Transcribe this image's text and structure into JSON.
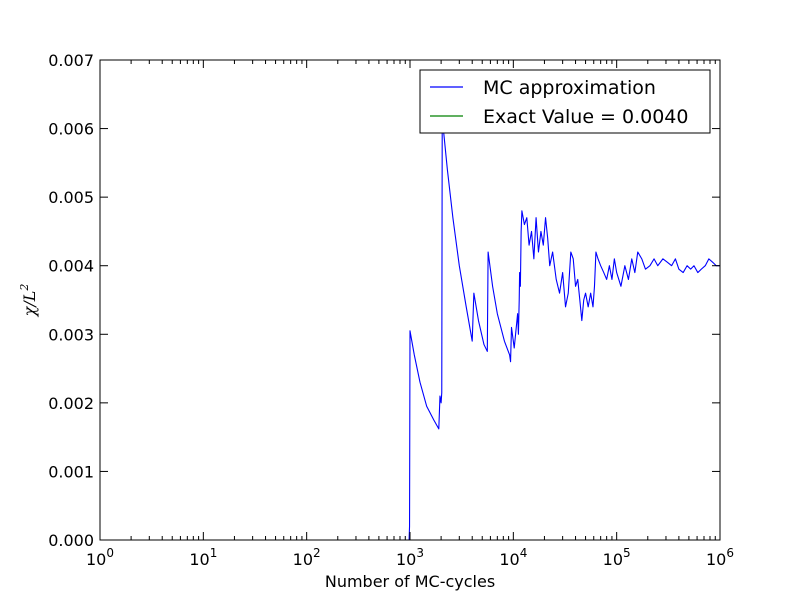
{
  "chart_data": {
    "type": "line",
    "xscale": "log",
    "xlim": [
      1,
      1000000
    ],
    "ylim": [
      0.0,
      0.007
    ],
    "xlabel": "Number of MC-cycles",
    "ylabel": "χ/L",
    "ylabel_sup": "2",
    "x_ticks": [
      {
        "value": 1,
        "base": "10",
        "exp": "0"
      },
      {
        "value": 10,
        "base": "10",
        "exp": "1"
      },
      {
        "value": 100,
        "base": "10",
        "exp": "2"
      },
      {
        "value": 1000,
        "base": "10",
        "exp": "3"
      },
      {
        "value": 10000,
        "base": "10",
        "exp": "4"
      },
      {
        "value": 100000,
        "base": "10",
        "exp": "5"
      },
      {
        "value": 1000000,
        "base": "10",
        "exp": "6"
      }
    ],
    "y_ticks": [
      {
        "value": 0.0,
        "label": "0.000"
      },
      {
        "value": 0.001,
        "label": "0.001"
      },
      {
        "value": 0.002,
        "label": "0.002"
      },
      {
        "value": 0.003,
        "label": "0.003"
      },
      {
        "value": 0.004,
        "label": "0.004"
      },
      {
        "value": 0.005,
        "label": "0.005"
      },
      {
        "value": 0.006,
        "label": "0.006"
      },
      {
        "value": 0.007,
        "label": "0.007"
      }
    ],
    "legend_position": "top-right",
    "series": [
      {
        "name": "MC approximation",
        "color": "#0000ff",
        "points": [
          [
            1,
            0.0
          ],
          [
            100,
            0.0
          ],
          [
            950,
            0.0
          ],
          [
            980,
            0.0
          ],
          [
            990,
            0.0002
          ],
          [
            1000,
            0.00305
          ],
          [
            1100,
            0.0027
          ],
          [
            1250,
            0.0023
          ],
          [
            1450,
            0.00195
          ],
          [
            1700,
            0.00175
          ],
          [
            1900,
            0.00162
          ],
          [
            1950,
            0.0021
          ],
          [
            2000,
            0.002
          ],
          [
            2030,
            0.00215
          ],
          [
            2050,
            0.00605
          ],
          [
            2100,
            0.006
          ],
          [
            2300,
            0.0054
          ],
          [
            2600,
            0.0047
          ],
          [
            3000,
            0.004
          ],
          [
            3500,
            0.0034
          ],
          [
            4000,
            0.0029
          ],
          [
            4150,
            0.0036
          ],
          [
            4600,
            0.0032
          ],
          [
            5200,
            0.00285
          ],
          [
            5600,
            0.00275
          ],
          [
            5700,
            0.0042
          ],
          [
            6300,
            0.0037
          ],
          [
            7000,
            0.0033
          ],
          [
            8200,
            0.0029
          ],
          [
            9200,
            0.0027
          ],
          [
            9400,
            0.0026
          ],
          [
            9600,
            0.0031
          ],
          [
            10200,
            0.0028
          ],
          [
            11000,
            0.0033
          ],
          [
            11200,
            0.003
          ],
          [
            11400,
            0.0035
          ],
          [
            11500,
            0.0039
          ],
          [
            11700,
            0.0037
          ],
          [
            11900,
            0.0045
          ],
          [
            12100,
            0.0048
          ],
          [
            12800,
            0.0046
          ],
          [
            13500,
            0.0047
          ],
          [
            14200,
            0.0043
          ],
          [
            15000,
            0.0045
          ],
          [
            15800,
            0.0041
          ],
          [
            16600,
            0.0047
          ],
          [
            17500,
            0.0042
          ],
          [
            18500,
            0.0045
          ],
          [
            19500,
            0.0043
          ],
          [
            20500,
            0.0047
          ],
          [
            21500,
            0.0044
          ],
          [
            22500,
            0.004
          ],
          [
            24000,
            0.0042
          ],
          [
            26000,
            0.0038
          ],
          [
            28000,
            0.0036
          ],
          [
            30000,
            0.0039
          ],
          [
            32000,
            0.0034
          ],
          [
            34000,
            0.0036
          ],
          [
            36000,
            0.0042
          ],
          [
            38000,
            0.0041
          ],
          [
            40000,
            0.0037
          ],
          [
            42000,
            0.0038
          ],
          [
            44000,
            0.0035
          ],
          [
            46000,
            0.0032
          ],
          [
            48000,
            0.0035
          ],
          [
            50000,
            0.0036
          ],
          [
            53000,
            0.0034
          ],
          [
            56000,
            0.0036
          ],
          [
            59000,
            0.0034
          ],
          [
            61000,
            0.0037
          ],
          [
            63000,
            0.0042
          ],
          [
            66000,
            0.0041
          ],
          [
            70000,
            0.004
          ],
          [
            75000,
            0.0039
          ],
          [
            80000,
            0.0038
          ],
          [
            85000,
            0.004
          ],
          [
            90000,
            0.0038
          ],
          [
            95000,
            0.0041
          ],
          [
            100000,
            0.0039
          ],
          [
            110000,
            0.0037
          ],
          [
            120000,
            0.004
          ],
          [
            130000,
            0.0038
          ],
          [
            140000,
            0.0041
          ],
          [
            150000,
            0.0039
          ],
          [
            160000,
            0.0042
          ],
          [
            175000,
            0.0041
          ],
          [
            190000,
            0.00395
          ],
          [
            210000,
            0.004
          ],
          [
            230000,
            0.0041
          ],
          [
            250000,
            0.004
          ],
          [
            280000,
            0.0041
          ],
          [
            310000,
            0.00405
          ],
          [
            340000,
            0.004
          ],
          [
            370000,
            0.0041
          ],
          [
            400000,
            0.00395
          ],
          [
            440000,
            0.0039
          ],
          [
            480000,
            0.004
          ],
          [
            520000,
            0.00395
          ],
          [
            560000,
            0.004
          ],
          [
            610000,
            0.0039
          ],
          [
            660000,
            0.00395
          ],
          [
            720000,
            0.004
          ],
          [
            780000,
            0.0041
          ],
          [
            850000,
            0.00405
          ],
          [
            920000,
            0.004
          ],
          [
            1000000,
            0.004
          ]
        ]
      },
      {
        "name": "Exact Value = 0.0040",
        "color": "#008000",
        "points": []
      }
    ]
  }
}
